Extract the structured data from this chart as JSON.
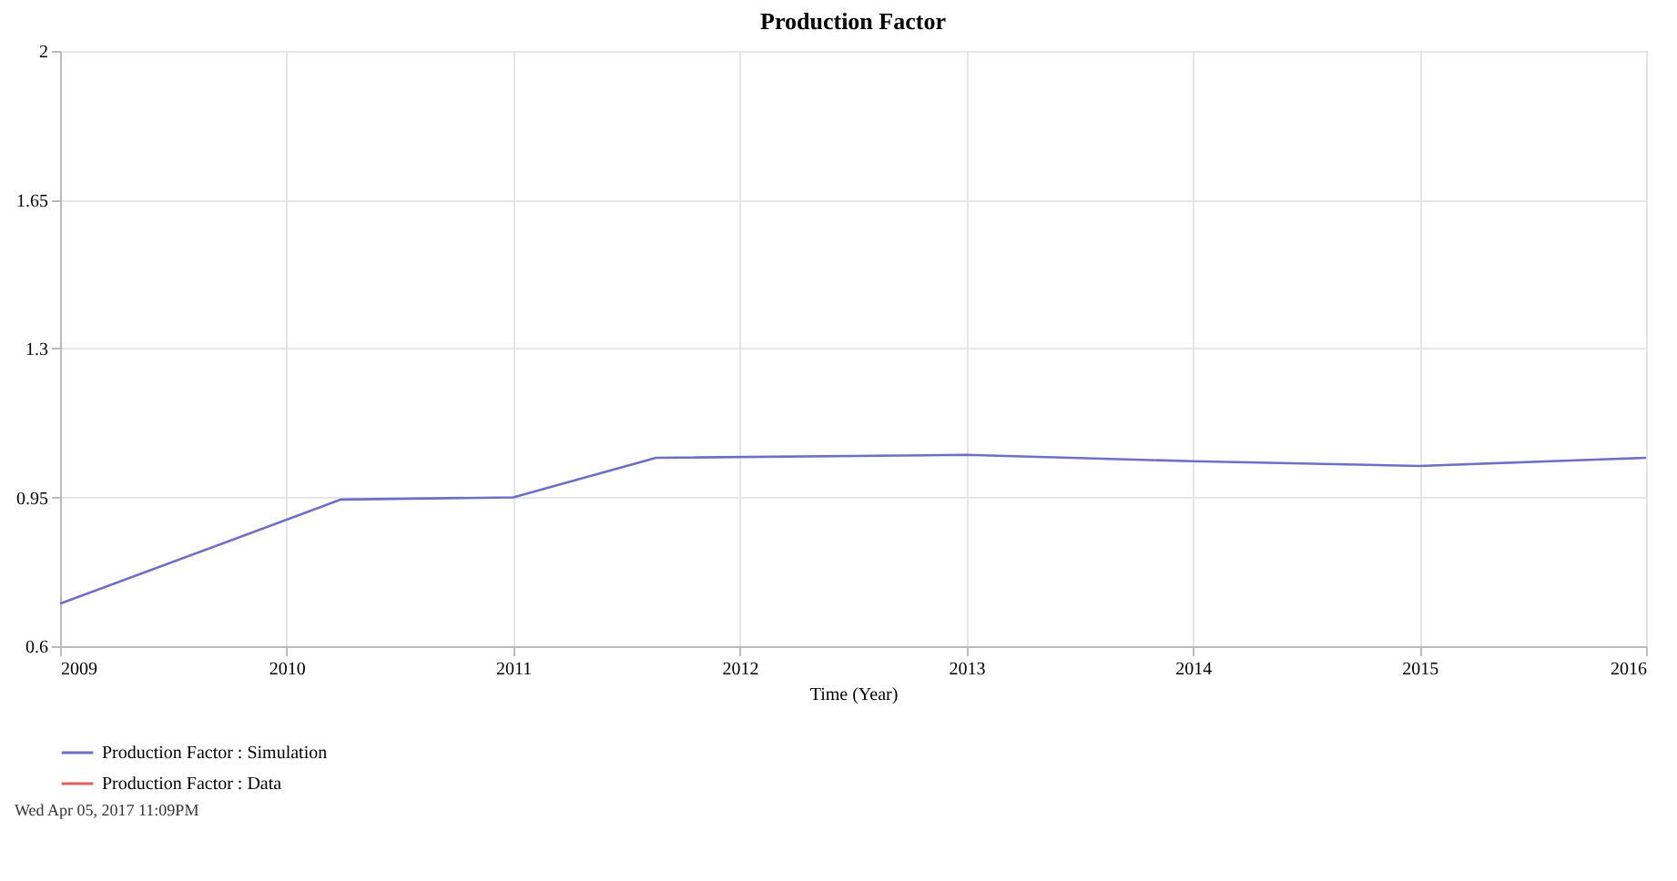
{
  "chart_data": {
    "type": "line",
    "title": "Production Factor",
    "xlabel": "Time (Year)",
    "xlim": [
      2009,
      2016
    ],
    "xticks": [
      2009,
      2010,
      2011,
      2012,
      2013,
      2014,
      2015,
      2016
    ],
    "ylim": [
      0.6,
      2
    ],
    "yticks": [
      0.6,
      0.95,
      1.3,
      1.65,
      2
    ],
    "grid": true,
    "legend": "bottom",
    "series": [
      {
        "name": "Production Factor : Simulation",
        "color": "#6f6fc8",
        "x": [
          2009,
          2010.24,
          2011,
          2011.63,
          2013,
          2014,
          2015,
          2016
        ],
        "values": [
          0.7,
          0.945,
          0.95,
          1.043,
          1.05,
          1.035,
          1.024,
          1.043
        ]
      },
      {
        "name": "Production Factor : Data",
        "color": "#e06060"
      }
    ],
    "annotations": [
      "Wed Apr 05, 2017 11:09PM"
    ]
  }
}
